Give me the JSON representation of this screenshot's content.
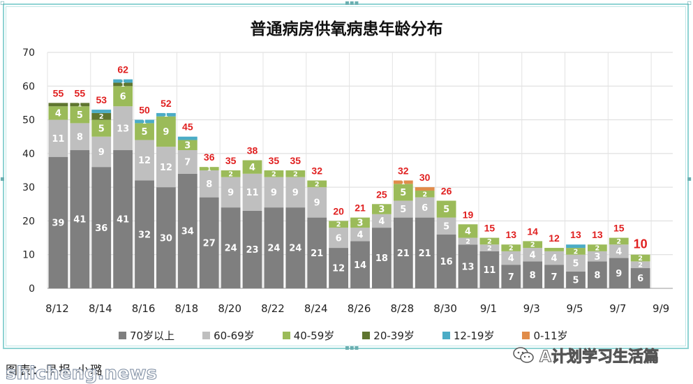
{
  "title": "普通病房供氧病患年龄分布",
  "caption": "图表：早报·小璐",
  "watermark_left": "shicheng.news",
  "watermark_right": "A计划学习生活篇",
  "chart_data": {
    "type": "bar",
    "stacked": true,
    "categories": [
      "8/12",
      "8/13",
      "8/14",
      "8/15",
      "8/16",
      "8/17",
      "8/18",
      "8/19",
      "8/20",
      "8/21",
      "8/22",
      "8/23",
      "8/24",
      "8/25",
      "8/26",
      "8/27",
      "8/28",
      "8/29",
      "8/30",
      "8/31",
      "9/1",
      "9/2",
      "9/3",
      "9/4",
      "9/5",
      "9/6",
      "9/7",
      "9/8",
      "9/9"
    ],
    "x_tick_labels": [
      "8/12",
      "8/14",
      "8/16",
      "8/18",
      "8/20",
      "8/22",
      "8/24",
      "8/26",
      "8/28",
      "8/30",
      "9/1",
      "9/3",
      "9/5",
      "9/7",
      "9/9"
    ],
    "ylim": [
      0,
      70
    ],
    "yticks": [
      0,
      10,
      20,
      30,
      40,
      50,
      60,
      70
    ],
    "grid": true,
    "legend_position": "bottom",
    "series": [
      {
        "name": "70岁以上",
        "color": "#7f7f7f",
        "label_color": "#ffffff",
        "values": [
          39,
          41,
          36,
          41,
          32,
          30,
          34,
          27,
          24,
          23,
          24,
          24,
          21,
          12,
          14,
          18,
          21,
          21,
          16,
          13,
          11,
          7,
          8,
          7,
          5,
          8,
          9,
          6,
          null
        ]
      },
      {
        "name": "60-69岁",
        "color": "#bfbfbf",
        "label_color": "#ffffff",
        "values": [
          11,
          8,
          9,
          13,
          12,
          12,
          7,
          8,
          9,
          11,
          9,
          9,
          9,
          6,
          4,
          4,
          5,
          6,
          5,
          2,
          2,
          4,
          4,
          4,
          5,
          3,
          4,
          2,
          null
        ]
      },
      {
        "name": "40-59岁",
        "color": "#9bbb59",
        "label_color": "#ffffff",
        "values": [
          4,
          5,
          5,
          6,
          5,
          9,
          3,
          1,
          2,
          4,
          2,
          2,
          2,
          2,
          3,
          3,
          5,
          2,
          5,
          4,
          2,
          2,
          2,
          1,
          2,
          2,
          2,
          2,
          null
        ]
      },
      {
        "name": "20-39岁",
        "color": "#5f7530",
        "label_color": "#ffffff",
        "values": [
          1,
          1,
          2,
          1,
          0,
          0,
          0,
          0,
          0,
          0,
          0,
          0,
          0,
          0,
          0,
          0,
          0,
          0,
          0,
          0,
          0,
          0,
          0,
          0,
          0,
          0,
          0,
          0,
          null
        ]
      },
      {
        "name": "12-19岁",
        "color": "#4bacc6",
        "label_color": "#ffffff",
        "values": [
          0,
          0,
          1,
          1,
          1,
          1,
          1,
          0,
          0,
          0,
          0,
          0,
          0,
          0,
          0,
          0,
          0,
          0,
          0,
          0,
          0,
          0,
          0,
          0,
          1,
          0,
          0,
          0,
          null
        ]
      },
      {
        "name": "0-11岁",
        "color": "#e08c4a",
        "label_color": "#ffffff",
        "values": [
          0,
          0,
          0,
          0,
          0,
          0,
          0,
          0,
          0,
          0,
          0,
          0,
          0,
          0,
          0,
          0,
          1,
          1,
          0,
          0,
          0,
          0,
          0,
          0,
          0,
          0,
          0,
          0,
          null
        ]
      }
    ],
    "segment_labels": {
      "70岁以上": [
        39,
        41,
        36,
        41,
        32,
        30,
        34,
        27,
        24,
        23,
        24,
        24,
        21,
        12,
        14,
        18,
        21,
        21,
        16,
        13,
        11,
        7,
        8,
        7,
        5,
        8,
        9,
        6,
        null
      ],
      "60-69岁": [
        11,
        8,
        9,
        13,
        12,
        12,
        7,
        8,
        9,
        11,
        9,
        9,
        9,
        6,
        4,
        4,
        5,
        6,
        5,
        2,
        2,
        4,
        4,
        4,
        5,
        3,
        4,
        2,
        null
      ],
      "40-59岁": [
        4,
        5,
        5,
        6,
        5,
        9,
        3,
        1,
        2,
        4,
        2,
        2,
        2,
        2,
        3,
        3,
        5,
        2,
        5,
        4,
        2,
        2,
        2,
        null,
        2,
        2,
        2,
        2,
        null
      ],
      "20-39岁": [
        null,
        1,
        2,
        1,
        null,
        null,
        null,
        null,
        null,
        null,
        null,
        null,
        null,
        null,
        null,
        null,
        null,
        null,
        null,
        null,
        null,
        null,
        null,
        null,
        null,
        null,
        null,
        null,
        null
      ],
      "12-19岁": [
        null,
        null,
        null,
        1,
        1,
        1,
        null,
        null,
        null,
        null,
        null,
        null,
        null,
        null,
        null,
        null,
        null,
        null,
        null,
        null,
        null,
        null,
        null,
        null,
        null,
        null,
        null,
        null,
        null
      ],
      "0-11岁": [
        null,
        null,
        null,
        null,
        null,
        null,
        null,
        null,
        null,
        null,
        null,
        null,
        null,
        null,
        null,
        null,
        1,
        null,
        null,
        null,
        null,
        null,
        null,
        null,
        null,
        null,
        null,
        null,
        null
      ]
    },
    "totals": [
      55,
      55,
      53,
      62,
      50,
      52,
      45,
      36,
      35,
      38,
      35,
      35,
      32,
      20,
      21,
      25,
      32,
      30,
      26,
      19,
      15,
      13,
      14,
      12,
      13,
      13,
      15,
      10,
      null
    ],
    "totals_color": "#e02020"
  }
}
